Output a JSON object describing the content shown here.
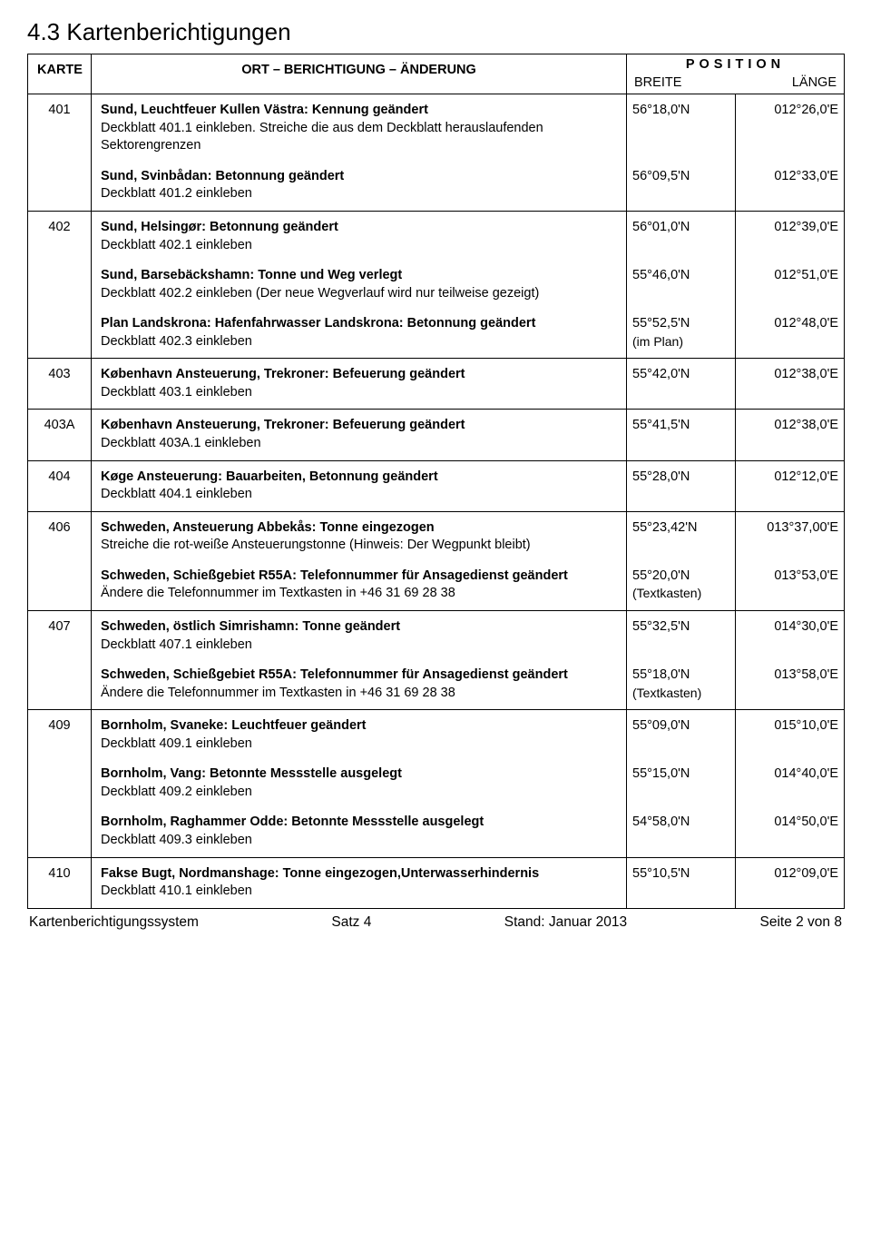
{
  "title": "4.3 Kartenberichtigungen",
  "header": {
    "karte": "KARTE",
    "ort": "ORT – BERICHTIGUNG – ÄNDERUNG",
    "position": "POSITION",
    "breite": "BREITE",
    "laenge": "LÄNGE"
  },
  "rows": [
    {
      "karte": "401",
      "entries": [
        {
          "title": "Sund, Leuchtfeuer Kullen Västra: Kennung geändert",
          "sub": "Deckblatt 401.1 einkleben. Streiche die aus dem Deckblatt herauslaufenden Sektorengrenzen",
          "breite": "56°18,0'N",
          "laenge": "012°26,0'E",
          "sub_lines": 2
        },
        {
          "title": "Sund, Svinbådan: Betonnung geändert",
          "sub": "Deckblatt 401.2 einkleben",
          "breite": "56°09,5'N",
          "laenge": "012°33,0'E"
        }
      ]
    },
    {
      "karte": "402",
      "entries": [
        {
          "title": "Sund, Helsingør: Betonnung geändert",
          "sub": "Deckblatt 402.1 einkleben",
          "breite": "56°01,0'N",
          "laenge": "012°39,0'E"
        },
        {
          "title": "Sund, Barsebäckshamn: Tonne und Weg verlegt",
          "sub": "Deckblatt 402.2 einkleben (Der neue Wegverlauf wird nur teilweise gezeigt)",
          "breite": "55°46,0'N",
          "laenge": "012°51,0'E"
        },
        {
          "title": "Plan Landskrona: Hafenfahrwasser Landskrona: Betonnung geändert",
          "sub": "Deckblatt 402.3 einkleben",
          "breite": "55°52,5'N",
          "breite_note": "(im Plan)",
          "laenge": "012°48,0'E"
        }
      ]
    },
    {
      "karte": "403",
      "entries": [
        {
          "title": "København Ansteuerung, Trekroner: Befeuerung geändert",
          "sub": "Deckblatt 403.1 einkleben",
          "breite": "55°42,0'N",
          "laenge": "012°38,0'E"
        }
      ]
    },
    {
      "karte": "403A",
      "entries": [
        {
          "title": "København Ansteuerung, Trekroner: Befeuerung geändert",
          "sub": "Deckblatt 403A.1 einkleben",
          "breite": "55°41,5'N",
          "laenge": "012°38,0'E"
        }
      ]
    },
    {
      "karte": "404",
      "entries": [
        {
          "title": "Køge Ansteuerung: Bauarbeiten, Betonnung geändert",
          "sub": "Deckblatt 404.1 einkleben",
          "breite": "55°28,0'N",
          "laenge": "012°12,0'E"
        }
      ]
    },
    {
      "karte": "406",
      "entries": [
        {
          "title": "Schweden, Ansteuerung Abbekås: Tonne eingezogen",
          "sub": "Streiche die rot-weiße Ansteuerungstonne (Hinweis: Der Wegpunkt bleibt)",
          "breite": "55°23,42'N",
          "laenge": "013°37,00'E"
        },
        {
          "title": "Schweden, Schießgebiet R55A: Telefonnummer für Ansagedienst geändert",
          "sub": "Ändere die Telefonnummer im Textkasten in +46 31 69 28 38",
          "breite": "55°20,0'N",
          "breite_note": "(Textkasten)",
          "laenge": "013°53,0'E"
        }
      ]
    },
    {
      "karte": "407",
      "entries": [
        {
          "title": "Schweden, östlich Simrishamn: Tonne geändert",
          "sub": "Deckblatt 407.1 einkleben",
          "breite": "55°32,5'N",
          "laenge": "014°30,0'E"
        },
        {
          "title": "Schweden, Schießgebiet R55A: Telefonnummer für Ansagedienst geändert",
          "sub": "Ändere die Telefonnummer im Textkasten in +46 31 69 28 38",
          "breite": "55°18,0'N",
          "breite_note": "(Textkasten)",
          "laenge": "013°58,0'E"
        }
      ]
    },
    {
      "karte": "409",
      "entries": [
        {
          "title": "Bornholm, Svaneke: Leuchtfeuer geändert",
          "sub": "Deckblatt 409.1 einkleben",
          "breite": "55°09,0'N",
          "laenge": "015°10,0'E"
        },
        {
          "title": "Bornholm, Vang: Betonnte Messstelle ausgelegt",
          "sub": "Deckblatt 409.2 einkleben",
          "breite": "55°15,0'N",
          "laenge": "014°40,0'E"
        },
        {
          "title": "Bornholm, Raghammer Odde: Betonnte Messstelle ausgelegt",
          "sub": "Deckblatt 409.3 einkleben",
          "breite": "54°58,0'N",
          "laenge": "014°50,0'E"
        }
      ]
    },
    {
      "karte": "410",
      "entries": [
        {
          "title": "Fakse Bugt, Nordmanshage: Tonne eingezogen,Unterwasserhindernis",
          "sub": "Deckblatt 410.1 einkleben",
          "breite": "55°10,5'N",
          "laenge": "012°09,0'E"
        }
      ]
    }
  ],
  "footer": {
    "left": "Kartenberichtigungssystem",
    "mid1": "Satz 4",
    "mid2": "Stand: Januar 2013",
    "right": "Seite 2 von 8"
  }
}
